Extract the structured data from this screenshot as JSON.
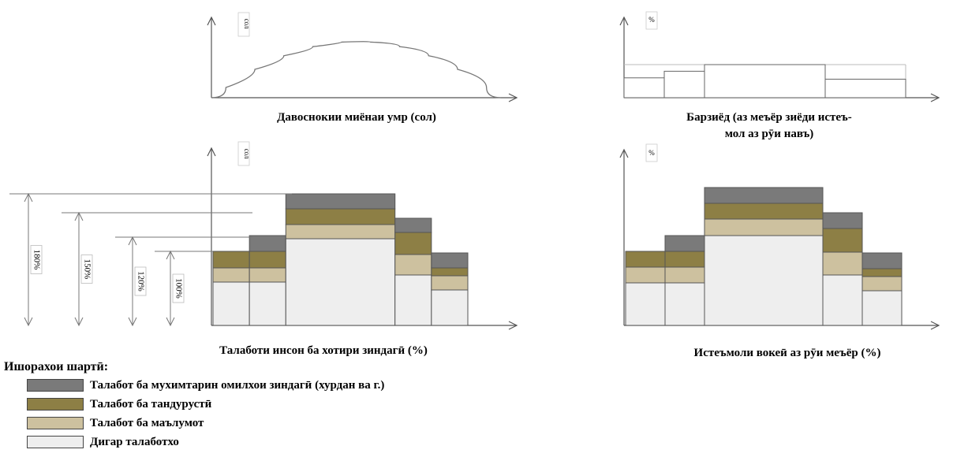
{
  "colors": {
    "vital": "#7a7a7a",
    "health": "#8d7f45",
    "education": "#cdc19f",
    "other": "#eeeeee",
    "outline": "#555555"
  },
  "chart_data": [
    {
      "type": "line",
      "xlabel": "Давоснокии миёнаи умр (сол)",
      "ylabel": "сол",
      "shape": "single hump (rises, peaks mid-range, falls)",
      "x": [
        0,
        0.1,
        0.2,
        0.3,
        0.4,
        0.5,
        0.6,
        0.7,
        0.8,
        0.9,
        1.0
      ],
      "y": [
        0,
        0.36,
        0.64,
        0.84,
        0.96,
        1.0,
        0.96,
        0.84,
        0.64,
        0.36,
        0
      ],
      "values_note": "no numeric ticks are printed"
    },
    {
      "type": "bar",
      "xlabel": "Барзиёд (аз меъёр зиёди истеъ-мол аз рӯи навъ)",
      "xlabel_lines": [
        "Барзиёд (аз меъёр зиёди истеъ-",
        "мол аз рӯи навъ)"
      ],
      "ylabel": "%",
      "bar_widths": [
        1,
        1,
        3,
        2
      ],
      "values": [
        1.5,
        2.0,
        2.5,
        1.4
      ],
      "reference_level": 2.5
    },
    {
      "type": "bar",
      "stacked": true,
      "xlabel": "Талаботи инсон ба хотири зиндагӣ (%)",
      "ylabel": "сол",
      "bar_widths": [
        1,
        1,
        3,
        1,
        1
      ],
      "series": [
        {
          "name": "Дигар талаботхо",
          "values": [
            55,
            55,
            110,
            64,
            45
          ]
        },
        {
          "name": "Талабот ба маълумот",
          "values": [
            18,
            18,
            18,
            26,
            18
          ]
        },
        {
          "name": "Талабот ба тандурустӣ",
          "values": [
            21,
            21,
            20,
            28,
            10
          ]
        },
        {
          "name": "Талабот ба мухимтарин омилхои зиндагӣ (хурдан ва г.)",
          "values": [
            0,
            20,
            19,
            18,
            19
          ]
        }
      ],
      "reference_levels": [
        {
          "label": "180%",
          "value": 167
        },
        {
          "label": "150%",
          "value": 143
        },
        {
          "label": "120%",
          "value": 112
        },
        {
          "label": "100%",
          "value": 94
        }
      ]
    },
    {
      "type": "bar",
      "stacked": true,
      "xlabel": "Истеъмоли вокеӣ аз рӯи меъёр (%)",
      "ylabel": "%",
      "bar_widths": [
        1,
        1,
        3,
        1,
        1
      ],
      "series": [
        {
          "name": "Дигар талаботхо",
          "values": [
            54,
            54,
            114,
            64,
            44
          ]
        },
        {
          "name": "Талабот ба маълумот",
          "values": [
            20,
            20,
            21,
            29,
            18
          ]
        },
        {
          "name": "Талабот ба тандурустӣ",
          "values": [
            20,
            20,
            20,
            30,
            10
          ]
        },
        {
          "name": "Талабот ба мухимтарин омилхои зиндагӣ (хурдан ва г.)",
          "values": [
            0,
            20,
            20,
            20,
            20
          ]
        }
      ]
    }
  ],
  "legend": {
    "title": "Ишорахои шартӣ:",
    "items": [
      {
        "label": "Талабот ба мухимтарин омилхои зиндагӣ (хурдан ва г.)",
        "color": "#7a7a7a"
      },
      {
        "label": "Талабот ба тандурустӣ",
        "color": "#8d7f45"
      },
      {
        "label": "Талабот ба маълумот",
        "color": "#cdc19f"
      },
      {
        "label": "Дигар талаботхо",
        "color": "#eeeeee"
      }
    ]
  }
}
